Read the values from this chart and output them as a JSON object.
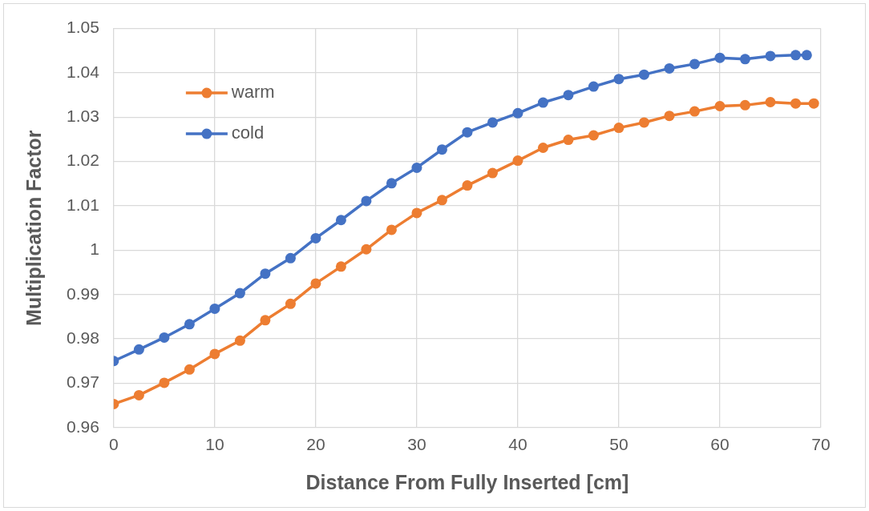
{
  "chart_data": {
    "type": "line",
    "xlabel": "Distance From Fully Inserted [cm]",
    "ylabel": "Multiplication Factor",
    "x": [
      0,
      2.5,
      5,
      7.5,
      10,
      12.5,
      15,
      17.5,
      20,
      22.5,
      25,
      27.5,
      30,
      32.5,
      35,
      37.5,
      40,
      42.5,
      45,
      47.5,
      50,
      52.5,
      55,
      57.5,
      60,
      62.5,
      65,
      67.5,
      69.3
    ],
    "series": [
      {
        "name": "warm",
        "color": "#ed7d31",
        "values": [
          0.9653,
          0.9673,
          0.9701,
          0.9731,
          0.9766,
          0.9796,
          0.9842,
          0.9879,
          0.9925,
          0.9963,
          1.0002,
          1.0046,
          1.0084,
          1.0113,
          1.0146,
          1.0174,
          1.0202,
          1.0231,
          1.0249,
          1.0259,
          1.0276,
          1.0288,
          1.0303,
          1.0313,
          1.0325,
          1.0327,
          1.0334,
          1.0331,
          1.0331
        ]
      },
      {
        "name": "cold",
        "color": "#4472c4",
        "x": [
          0,
          2.5,
          5,
          7.5,
          10,
          12.5,
          15,
          17.5,
          20,
          22.5,
          25,
          27.5,
          30,
          32.5,
          35,
          37.5,
          40,
          42.5,
          45,
          47.5,
          50,
          52.5,
          55,
          57.5,
          60,
          62.5,
          65,
          67.5,
          68.6
        ],
        "values": [
          0.975,
          0.9776,
          0.9803,
          0.9833,
          0.9868,
          0.9903,
          0.9947,
          0.9982,
          1.0027,
          1.0068,
          1.0111,
          1.0151,
          1.0186,
          1.0227,
          1.0266,
          1.0288,
          1.0309,
          1.0333,
          1.035,
          1.0369,
          1.0386,
          1.0396,
          1.041,
          1.042,
          1.0434,
          1.0431,
          1.0438,
          1.044,
          1.044
        ]
      }
    ],
    "xlim": [
      0,
      70
    ],
    "xticks": [
      0,
      10,
      20,
      30,
      40,
      50,
      60,
      70
    ],
    "ylim": [
      0.96,
      1.05
    ],
    "yticks": [
      0.96,
      0.97,
      0.98,
      0.99,
      1,
      1.01,
      1.02,
      1.03,
      1.04,
      1.05
    ],
    "grid": true,
    "legend": "top left",
    "marker": "circle",
    "line_style": "solid"
  }
}
